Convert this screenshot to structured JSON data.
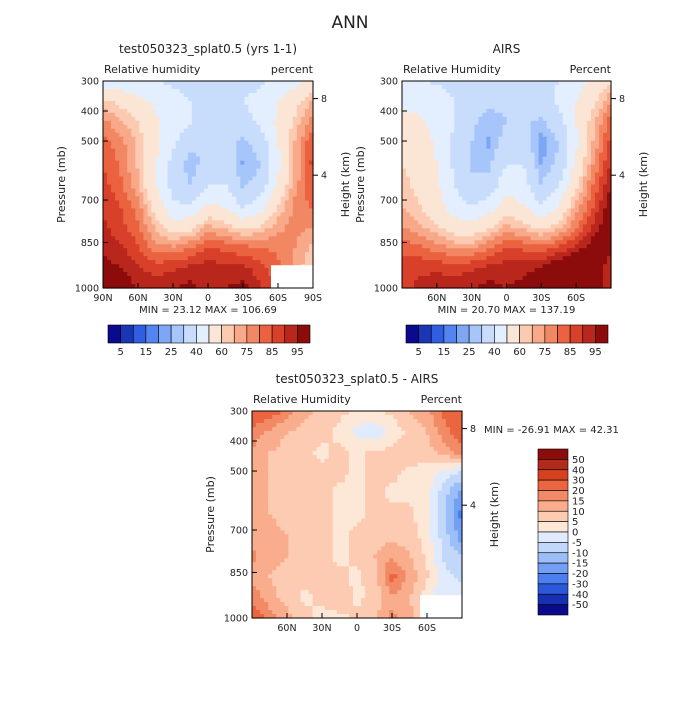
{
  "page": {
    "title": "ANN"
  },
  "chart_data": [
    {
      "type": "heatmap",
      "title": "test050323_splat0.5 (yrs 1-1)",
      "subtitle_left": "Relative humidity",
      "subtitle_right": "percent",
      "xlabel": "",
      "ylabel": "Pressure (mb)",
      "ylabel_right": "Height (km)",
      "x_ticks": [
        "90N",
        "60N",
        "30N",
        "0",
        "30S",
        "60S",
        "90S"
      ],
      "y_ticks": [
        "300",
        "400",
        "500",
        "700",
        "850",
        "1000"
      ],
      "y_ticks_right": [
        "8",
        "4"
      ],
      "stats": "MIN =  23.12  MAX = 106.69",
      "colorbar_labels": [
        "5",
        "15",
        "25",
        "40",
        "60",
        "75",
        "85",
        "95"
      ],
      "levels": [
        5,
        10,
        15,
        20,
        25,
        30,
        40,
        50,
        60,
        65,
        70,
        75,
        80,
        85,
        90,
        95
      ],
      "colors": [
        "#0a0a8c",
        "#1a35b5",
        "#2f5fe0",
        "#5384f0",
        "#7da6f5",
        "#a6c5fa",
        "#c8dcfc",
        "#e3eefe",
        "#fbe6d6",
        "#fccab0",
        "#f8a989",
        "#f28763",
        "#ea6240",
        "#d8402a",
        "#b8261c",
        "#8c0c0c"
      ],
      "field": [
        [
          45,
          44,
          42,
          40,
          38,
          36,
          35,
          35,
          36,
          38,
          42,
          47,
          54
        ],
        [
          62,
          58,
          53,
          48,
          44,
          40,
          38,
          38,
          40,
          44,
          50,
          57,
          66
        ],
        [
          72,
          66,
          60,
          52,
          46,
          40,
          36,
          34,
          36,
          42,
          52,
          62,
          74
        ],
        [
          78,
          72,
          64,
          54,
          42,
          32,
          30,
          34,
          28,
          34,
          50,
          66,
          80
        ],
        [
          80,
          74,
          64,
          50,
          36,
          26,
          34,
          38,
          24,
          30,
          48,
          66,
          82
        ],
        [
          82,
          76,
          66,
          50,
          36,
          30,
          40,
          40,
          28,
          34,
          52,
          68,
          80
        ],
        [
          84,
          80,
          72,
          56,
          42,
          40,
          52,
          48,
          38,
          44,
          60,
          72,
          76
        ],
        [
          86,
          82,
          76,
          64,
          54,
          56,
          66,
          62,
          56,
          60,
          68,
          72,
          70
        ],
        [
          88,
          86,
          80,
          72,
          70,
          74,
          80,
          78,
          76,
          74,
          74,
          70,
          64
        ],
        [
          92,
          90,
          86,
          82,
          84,
          86,
          88,
          86,
          86,
          82,
          76,
          68,
          60
        ],
        [
          98,
          94,
          90,
          88,
          90,
          92,
          88,
          90,
          92,
          86,
          78,
          66,
          58
        ]
      ],
      "missing_box": "bottom-right"
    },
    {
      "type": "heatmap",
      "title": "AIRS",
      "subtitle_left": "Relative Humidity",
      "subtitle_right": "Percent",
      "xlabel": "",
      "ylabel": "Pressure (mb)",
      "ylabel_right": "Height (km)",
      "x_ticks": [
        "60N",
        "30N",
        "0",
        "30S",
        "60S"
      ],
      "y_ticks": [
        "300",
        "400",
        "500",
        "700",
        "850",
        "1000"
      ],
      "y_ticks_right": [
        "8",
        "4"
      ],
      "stats": "MIN =  20.70  MAX = 137.19",
      "colorbar_labels": [
        "5",
        "15",
        "25",
        "40",
        "60",
        "75",
        "85",
        "95"
      ],
      "levels": [
        5,
        10,
        15,
        20,
        25,
        30,
        40,
        50,
        60,
        65,
        70,
        75,
        80,
        85,
        90,
        95
      ],
      "colors": [
        "#0a0a8c",
        "#1a35b5",
        "#2f5fe0",
        "#5384f0",
        "#7da6f5",
        "#a6c5fa",
        "#c8dcfc",
        "#e3eefe",
        "#fbe6d6",
        "#fccab0",
        "#f8a989",
        "#f28763",
        "#ea6240",
        "#d8402a",
        "#b8261c",
        "#8c0c0c"
      ],
      "field": [
        [
          40,
          40,
          39,
          38,
          36,
          35,
          35,
          36,
          38,
          40,
          45,
          52,
          60
        ],
        [
          48,
          46,
          44,
          40,
          36,
          32,
          32,
          34,
          36,
          42,
          50,
          58,
          70
        ],
        [
          54,
          52,
          46,
          40,
          32,
          26,
          30,
          32,
          28,
          36,
          50,
          64,
          78
        ],
        [
          58,
          56,
          48,
          38,
          30,
          24,
          34,
          34,
          22,
          30,
          48,
          66,
          82
        ],
        [
          60,
          56,
          50,
          38,
          28,
          28,
          40,
          40,
          24,
          32,
          52,
          70,
          86
        ],
        [
          62,
          58,
          52,
          40,
          32,
          34,
          46,
          44,
          30,
          40,
          58,
          76,
          90
        ],
        [
          64,
          60,
          54,
          44,
          40,
          44,
          54,
          50,
          40,
          50,
          66,
          80,
          94
        ],
        [
          70,
          66,
          60,
          54,
          52,
          58,
          66,
          62,
          56,
          62,
          74,
          86,
          96
        ],
        [
          78,
          76,
          72,
          68,
          68,
          74,
          80,
          78,
          76,
          80,
          86,
          94,
          92
        ],
        [
          82,
          84,
          84,
          82,
          84,
          86,
          88,
          88,
          90,
          96,
          100,
          96,
          86
        ],
        [
          84,
          86,
          88,
          88,
          90,
          92,
          90,
          92,
          96,
          104,
          110,
          98,
          84
        ]
      ]
    },
    {
      "type": "heatmap",
      "title": "test050323_splat0.5 - AIRS",
      "subtitle_left": "Relative Humidity",
      "subtitle_right": "Percent",
      "xlabel": "",
      "ylabel": "Pressure (mb)",
      "ylabel_right": "Height (km)",
      "x_ticks": [
        "60N",
        "30N",
        "0",
        "30S",
        "60S"
      ],
      "y_ticks": [
        "300",
        "400",
        "500",
        "700",
        "850",
        "1000"
      ],
      "y_ticks_right": [
        "8",
        "4"
      ],
      "stats": "MIN = -26.91   MAX =  42.31",
      "colorbar_labels": [
        "50",
        "40",
        "30",
        "20",
        "15",
        "10",
        "5",
        "0",
        "-5",
        "-10",
        "-15",
        "-20",
        "-30",
        "-40",
        "-50"
      ],
      "levels": [
        -50,
        -40,
        -30,
        -20,
        -15,
        -10,
        -5,
        0,
        5,
        10,
        15,
        20,
        30,
        40,
        50
      ],
      "colors": [
        "#0a0a8c",
        "#1530b0",
        "#2a58d8",
        "#4a7ff0",
        "#739ff5",
        "#9bbdf8",
        "#c2d8fb",
        "#e0ecfd",
        "#fde8d8",
        "#fccbb2",
        "#f9ad8d",
        "#f28a66",
        "#ea6540",
        "#d4421f",
        "#b02b1a",
        "#8c0c0c"
      ],
      "field": [
        [
          28,
          24,
          18,
          12,
          8,
          6,
          5,
          5,
          6,
          10,
          14,
          22,
          28
        ],
        [
          18,
          14,
          10,
          8,
          6,
          4,
          -2,
          -4,
          2,
          6,
          10,
          18,
          24
        ],
        [
          14,
          10,
          8,
          6,
          4,
          6,
          4,
          6,
          6,
          8,
          8,
          12,
          18
        ],
        [
          12,
          10,
          8,
          6,
          6,
          6,
          4,
          6,
          6,
          4,
          2,
          -2,
          -6
        ],
        [
          10,
          10,
          8,
          6,
          6,
          4,
          4,
          6,
          4,
          4,
          2,
          -8,
          -18
        ],
        [
          12,
          10,
          8,
          6,
          6,
          4,
          4,
          6,
          6,
          6,
          2,
          -10,
          -22
        ],
        [
          14,
          12,
          10,
          8,
          6,
          4,
          6,
          8,
          8,
          8,
          2,
          -8,
          -18
        ],
        [
          16,
          12,
          10,
          8,
          6,
          4,
          6,
          10,
          14,
          10,
          4,
          -6,
          -10
        ],
        [
          14,
          10,
          8,
          6,
          8,
          6,
          4,
          8,
          22,
          14,
          6,
          -4,
          -6
        ],
        [
          18,
          12,
          8,
          4,
          6,
          8,
          4,
          6,
          14,
          10,
          2,
          -4,
          -2
        ],
        [
          26,
          18,
          12,
          6,
          4,
          4,
          6,
          10,
          16,
          12,
          4,
          -2,
          0
        ]
      ],
      "missing_box": "bottom-right"
    }
  ]
}
